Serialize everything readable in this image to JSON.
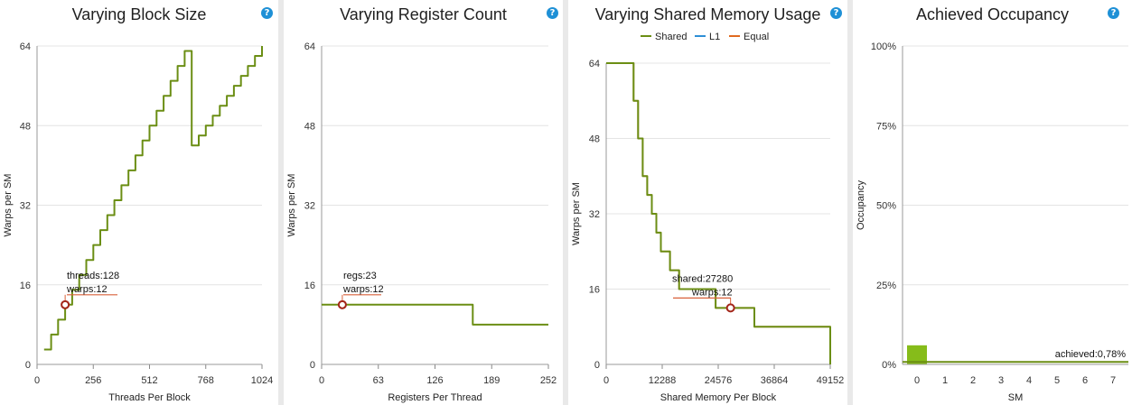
{
  "help_glyph": "?",
  "chart_data": [
    {
      "type": "line",
      "title": "Varying Block Size",
      "xlabel": "Threads Per Block",
      "ylabel": "Warps per SM",
      "xticks": [
        "0",
        "256",
        "512",
        "768",
        "1024"
      ],
      "yticks": [
        "0",
        "16",
        "32",
        "48",
        "64"
      ],
      "xlim": [
        0,
        1024
      ],
      "ylim": [
        0,
        64
      ],
      "grid": true,
      "series": [
        {
          "color": "#6b8e14",
          "points": [
            [
              32,
              3
            ],
            [
              64,
              6
            ],
            [
              96,
              9
            ],
            [
              128,
              12
            ],
            [
              160,
              15
            ],
            [
              192,
              18
            ],
            [
              224,
              21
            ],
            [
              256,
              24
            ],
            [
              288,
              27
            ],
            [
              320,
              30
            ],
            [
              352,
              33
            ],
            [
              384,
              36
            ],
            [
              416,
              39
            ],
            [
              448,
              42
            ],
            [
              480,
              45
            ],
            [
              512,
              48
            ],
            [
              544,
              51
            ],
            [
              576,
              54
            ],
            [
              608,
              57
            ],
            [
              640,
              60
            ],
            [
              672,
              63
            ],
            [
              704,
              44
            ],
            [
              736,
              46
            ],
            [
              768,
              48
            ],
            [
              800,
              50
            ],
            [
              832,
              52
            ],
            [
              864,
              54
            ],
            [
              896,
              56
            ],
            [
              928,
              58
            ],
            [
              960,
              60
            ],
            [
              992,
              62
            ],
            [
              1024,
              64
            ]
          ]
        }
      ],
      "marker": {
        "x": 128,
        "y": 12
      },
      "annotations": [
        "threads:128",
        "warps:12"
      ]
    },
    {
      "type": "line",
      "title": "Varying Register Count",
      "xlabel": "Registers Per Thread",
      "ylabel": "Warps per SM",
      "xticks": [
        "0",
        "63",
        "126",
        "189",
        "252"
      ],
      "yticks": [
        "0",
        "16",
        "32",
        "48",
        "64"
      ],
      "xlim": [
        0,
        252
      ],
      "ylim": [
        0,
        64
      ],
      "grid": true,
      "series": [
        {
          "color": "#6b8e14",
          "points": [
            [
              0,
              12
            ],
            [
              168,
              12
            ],
            [
              168,
              8
            ],
            [
              252,
              8
            ]
          ]
        }
      ],
      "marker": {
        "x": 23,
        "y": 12
      },
      "annotations": [
        "regs:23",
        "warps:12"
      ]
    },
    {
      "type": "line",
      "title": "Varying Shared Memory Usage",
      "xlabel": "Shared Memory Per Block",
      "ylabel": "Warps per SM",
      "xticks": [
        "0",
        "12288",
        "24576",
        "36864",
        "49152"
      ],
      "yticks": [
        "0",
        "16",
        "32",
        "48",
        "64"
      ],
      "xlim": [
        0,
        49152
      ],
      "ylim": [
        0,
        64
      ],
      "grid": true,
      "legend": [
        "Shared",
        "L1",
        "Equal"
      ],
      "legend_position": "top",
      "series": [
        {
          "name": "Shared",
          "color": "#6b8e14",
          "points": [
            [
              0,
              64
            ],
            [
              5500,
              64
            ],
            [
              6000,
              56
            ],
            [
              7000,
              48
            ],
            [
              8000,
              40
            ],
            [
              9000,
              36
            ],
            [
              10000,
              32
            ],
            [
              11000,
              28
            ],
            [
              12000,
              24
            ],
            [
              14000,
              20
            ],
            [
              16000,
              16
            ],
            [
              23000,
              16
            ],
            [
              24000,
              12
            ],
            [
              32000,
              12
            ],
            [
              32500,
              8
            ],
            [
              48500,
              8
            ],
            [
              49152,
              0
            ]
          ]
        },
        {
          "name": "L1",
          "color": "#2e8fd6",
          "points": []
        },
        {
          "name": "Equal",
          "color": "#e06a1f",
          "points": [
            [
              0,
              64
            ],
            [
              5500,
              64
            ],
            [
              6000,
              56
            ],
            [
              7000,
              48
            ],
            [
              8000,
              40
            ],
            [
              9000,
              36
            ],
            [
              10000,
              32
            ],
            [
              11000,
              28
            ],
            [
              12000,
              24
            ],
            [
              14000,
              20
            ],
            [
              16000,
              16
            ],
            [
              23000,
              16
            ],
            [
              24000,
              12
            ],
            [
              32000,
              12
            ],
            [
              32500,
              8
            ],
            [
              48500,
              8
            ],
            [
              49152,
              0
            ]
          ]
        }
      ],
      "marker": {
        "x": 27280,
        "y": 12
      },
      "annotations": [
        "shared:27280",
        "warps:12"
      ]
    },
    {
      "type": "bar",
      "title": "Achieved Occupancy",
      "xlabel": "SM",
      "ylabel": "Occupancy",
      "categories": [
        "0",
        "1",
        "2",
        "3",
        "4",
        "5",
        "6",
        "7"
      ],
      "values": [
        6,
        0,
        0,
        0,
        0,
        0,
        0,
        0
      ],
      "yticks": [
        "0%",
        "25%",
        "50%",
        "75%",
        "100%"
      ],
      "ylim": [
        0,
        100
      ],
      "grid": true,
      "bar_color": "#86bc1a",
      "achieved_value": 0.78,
      "achieved_label": "achieved:0,78%"
    }
  ]
}
